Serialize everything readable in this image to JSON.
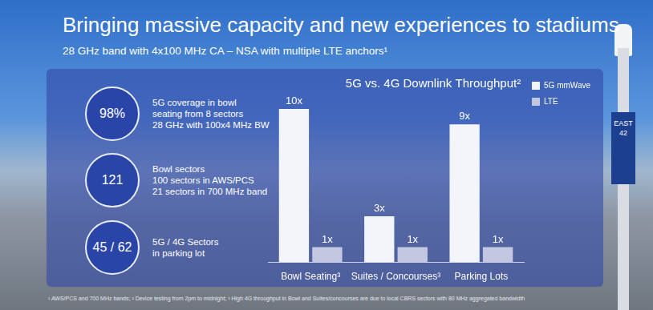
{
  "header": {
    "title": "Bringing massive capacity and new experiences to stadiums",
    "subtitle": "28 GHz band with 4x100 MHz CA – NSA with multiple LTE anchors¹"
  },
  "stats": [
    {
      "value": "98%",
      "lines": [
        "5G coverage in bowl",
        "seating from 8 sectors",
        "28 GHz with 100x4 MHz BW"
      ]
    },
    {
      "value": "121",
      "lines": [
        "Bowl sectors",
        "100 sectors in AWS/PCS",
        "21 sectors in 700 MHz band"
      ]
    },
    {
      "value": "45 / 62",
      "lines": [
        "5G / 4G Sectors",
        "in parking lot"
      ]
    }
  ],
  "chart_data": {
    "type": "bar",
    "title": "5G vs. 4G Downlink Throughput²",
    "categories": [
      "Bowl Seating³",
      "Suites / Concourses³",
      "Parking Lots"
    ],
    "series": [
      {
        "name": "5G mmWave",
        "color": "#f4f5fb",
        "values": [
          10,
          3,
          9
        ],
        "value_labels": [
          "10x",
          "3x",
          "9x"
        ]
      },
      {
        "name": "LTE",
        "color": "#c3c7e2",
        "values": [
          1,
          1,
          1
        ],
        "value_labels": [
          "1x",
          "1x",
          "1x"
        ]
      }
    ],
    "ylim": [
      0,
      10
    ],
    "grid": false,
    "legend": "top right",
    "data_labels": true,
    "tick_labels": "x"
  },
  "footnote": "¹ AWS/PCS and 700 MHz bands; ² Device testing from 2pm to midnight; ³ High 4G throughput in Bowl and Suites/concourses are due to local CBRS sectors with 80 MHz aggregated bandwidth",
  "sign": [
    "EAST",
    "42"
  ]
}
